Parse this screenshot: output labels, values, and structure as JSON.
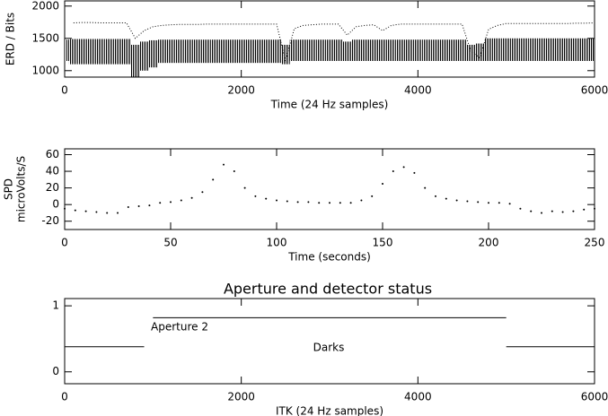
{
  "chart_data": [
    {
      "type": "line",
      "xlabel": "Time (24 Hz samples)",
      "ylabel": [
        "ERD / Bits"
      ],
      "xlim": [
        0,
        6000
      ],
      "ylim": [
        900,
        2080
      ],
      "xticks": [
        0,
        2000,
        4000,
        6000
      ],
      "yticks": [
        1000,
        1500,
        2000
      ],
      "grid": false,
      "x": [
        0,
        100,
        200,
        300,
        400,
        500,
        600,
        700,
        800,
        900,
        1000,
        1100,
        1200,
        1300,
        1400,
        1500,
        1600,
        1700,
        1800,
        1900,
        2000,
        2100,
        2200,
        2300,
        2400,
        2500,
        2600,
        2700,
        2800,
        2900,
        3000,
        3100,
        3200,
        3300,
        3400,
        3500,
        3600,
        3700,
        3800,
        3900,
        4000,
        4100,
        4200,
        4300,
        4400,
        4500,
        4600,
        4700,
        4800,
        4900,
        5000,
        5100,
        5200,
        5300,
        5400,
        5500,
        5600,
        5700,
        5800,
        5900,
        6000
      ],
      "series": [
        {
          "color": "#000000",
          "values": [
            null,
            1740,
            1745,
            1745,
            1740,
            1740,
            1740,
            1740,
            1500,
            1620,
            1680,
            1700,
            1710,
            1715,
            1715,
            1715,
            1720,
            1720,
            1720,
            1720,
            1720,
            1720,
            1720,
            1720,
            1720,
            1150,
            1650,
            1700,
            1710,
            1720,
            1720,
            1720,
            1550,
            1680,
            1700,
            1710,
            1620,
            1700,
            1720,
            1720,
            1720,
            1720,
            1720,
            1720,
            1720,
            1720,
            1300,
            1200,
            1640,
            1700,
            1730,
            1730,
            1730,
            1730,
            1730,
            1730,
            1730,
            1730,
            1735,
            1735,
            1740
          ]
        }
      ],
      "band": {
        "color": "#000000",
        "high": [
          1480,
          1490,
          1490,
          1490,
          1490,
          1490,
          1490,
          1490,
          1400,
          1450,
          1470,
          1480,
          1480,
          1480,
          1480,
          1480,
          1480,
          1480,
          1480,
          1480,
          1480,
          1480,
          1480,
          1480,
          1480,
          1400,
          1480,
          1480,
          1480,
          1480,
          1480,
          1480,
          1450,
          1480,
          1480,
          1480,
          1480,
          1480,
          1480,
          1480,
          1480,
          1480,
          1480,
          1480,
          1480,
          1480,
          1400,
          1420,
          1500,
          1500,
          1500,
          1500,
          1500,
          1500,
          1500,
          1500,
          1500,
          1500,
          1500,
          1500,
          1500
        ],
        "low": [
          1150,
          1100,
          1100,
          1100,
          1100,
          1100,
          1100,
          1100,
          900,
          1000,
          1050,
          1120,
          1120,
          1120,
          1120,
          1120,
          1120,
          1120,
          1120,
          1120,
          1120,
          1120,
          1120,
          1120,
          1120,
          1100,
          1150,
          1150,
          1150,
          1150,
          1150,
          1150,
          1150,
          1150,
          1150,
          1150,
          1150,
          1150,
          1150,
          1150,
          1150,
          1150,
          1150,
          1150,
          1150,
          1150,
          1150,
          1150,
          1150,
          1150,
          1150,
          1150,
          1150,
          1150,
          1150,
          1150,
          1150,
          1150,
          1150,
          1150,
          1150
        ]
      }
    },
    {
      "type": "scatter",
      "xlabel": "Time (seconds)",
      "ylabel": [
        "SPD",
        "microVolts/S"
      ],
      "xlim": [
        0,
        250
      ],
      "ylim": [
        -30,
        67
      ],
      "xticks": [
        0,
        50,
        100,
        150,
        200,
        250
      ],
      "yticks": [
        -20,
        0,
        20,
        40,
        60
      ],
      "grid": false,
      "x": [
        0,
        5,
        10,
        15,
        20,
        25,
        30,
        35,
        40,
        45,
        50,
        55,
        60,
        65,
        70,
        75,
        80,
        85,
        90,
        95,
        100,
        105,
        110,
        115,
        120,
        125,
        130,
        135,
        140,
        145,
        150,
        155,
        160,
        165,
        170,
        175,
        180,
        185,
        190,
        195,
        200,
        205,
        210,
        215,
        220,
        225,
        230,
        235,
        240,
        245,
        250
      ],
      "series": [
        {
          "color": "#000000",
          "values": [
            -5,
            -7,
            -8,
            -9,
            -10,
            -10,
            -3,
            -2,
            -1,
            2,
            3,
            5,
            8,
            15,
            30,
            48,
            40,
            20,
            10,
            7,
            5,
            4,
            3,
            3,
            2,
            2,
            2,
            2,
            5,
            10,
            25,
            40,
            45,
            38,
            20,
            10,
            7,
            5,
            4,
            3,
            2,
            2,
            1,
            -5,
            -8,
            -10,
            -8,
            -9,
            -8,
            -6,
            -5
          ]
        }
      ]
    },
    {
      "type": "line",
      "title": "Aperture and detector status",
      "xlabel": "ITK (24 Hz samples)",
      "annotations": [
        "Aperture 2",
        "Darks"
      ],
      "xlim": [
        0,
        6000
      ],
      "ylim": [
        -0.18,
        1.11
      ],
      "xticks": [
        0,
        2000,
        4000,
        6000
      ],
      "yticks": [
        0,
        1
      ],
      "grid": false,
      "x": [
        0,
        900,
        1000,
        5000,
        5000,
        6000
      ],
      "series": [
        {
          "color": "#000000",
          "values": [
            0.38,
            0.38,
            null,
            null,
            0.38,
            0.38
          ]
        },
        {
          "color": "#000000",
          "values": [
            null,
            null,
            0.82,
            0.82,
            null,
            null
          ]
        }
      ]
    }
  ]
}
